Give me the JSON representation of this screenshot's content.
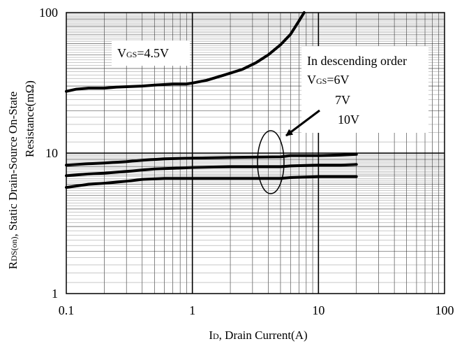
{
  "chart_data": {
    "type": "line",
    "x_scale": "log",
    "y_scale": "log",
    "xlim": [
      0.1,
      100
    ],
    "ylim": [
      1,
      100
    ],
    "x_ticks": [
      "0.1",
      "1",
      "10",
      "100"
    ],
    "y_ticks": [
      "1",
      "10",
      "100"
    ],
    "xlabel": {
      "main": "I",
      "sub": "D",
      "rest": ", Drain Current(A)"
    },
    "ylabel_line1": {
      "main": "R",
      "sub": "DS(on)",
      "rest": ", Static Drain-Source On-State"
    },
    "ylabel_line2": "Resistance(mΩ)",
    "grid": true,
    "series": [
      {
        "label": {
          "main": "V",
          "sub": "GS",
          "rest": "=4.5V"
        },
        "points": [
          [
            0.1,
            27.5
          ],
          [
            0.12,
            28.5
          ],
          [
            0.15,
            29
          ],
          [
            0.2,
            29
          ],
          [
            0.25,
            29.5
          ],
          [
            0.4,
            30
          ],
          [
            0.5,
            30.5
          ],
          [
            0.7,
            31
          ],
          [
            0.9,
            31
          ],
          [
            1.0,
            31.5
          ],
          [
            1.3,
            33
          ],
          [
            1.8,
            36
          ],
          [
            2.5,
            39.5
          ],
          [
            3.2,
            44
          ],
          [
            4.0,
            50
          ],
          [
            5.0,
            59
          ],
          [
            6.0,
            70
          ],
          [
            7.0,
            87
          ],
          [
            7.7,
            100
          ]
        ]
      },
      {
        "label": {
          "main": "V",
          "sub": "GS",
          "rest": "=6V"
        },
        "points": [
          [
            0.1,
            8.2
          ],
          [
            0.15,
            8.4
          ],
          [
            0.2,
            8.5
          ],
          [
            0.3,
            8.7
          ],
          [
            0.4,
            8.9
          ],
          [
            0.6,
            9.1
          ],
          [
            1.0,
            9.2
          ],
          [
            2.0,
            9.3
          ],
          [
            5.0,
            9.4
          ],
          [
            6.0,
            9.6
          ],
          [
            10.0,
            9.6
          ],
          [
            15.0,
            9.7
          ],
          [
            20.0,
            9.8
          ]
        ]
      },
      {
        "label": {
          "main": "",
          "sub": "",
          "rest": "7V"
        },
        "points": [
          [
            0.1,
            6.9
          ],
          [
            0.15,
            7.1
          ],
          [
            0.2,
            7.2
          ],
          [
            0.3,
            7.4
          ],
          [
            0.5,
            7.7
          ],
          [
            0.7,
            7.8
          ],
          [
            1.0,
            7.9
          ],
          [
            2.0,
            8.0
          ],
          [
            5.0,
            8.0
          ],
          [
            6.0,
            8.1
          ],
          [
            10.0,
            8.2
          ],
          [
            15.0,
            8.2
          ],
          [
            20.0,
            8.3
          ]
        ]
      },
      {
        "label": {
          "main": "",
          "sub": "",
          "rest": "10V"
        },
        "points": [
          [
            0.1,
            5.7
          ],
          [
            0.15,
            6.0
          ],
          [
            0.2,
            6.1
          ],
          [
            0.3,
            6.3
          ],
          [
            0.4,
            6.5
          ],
          [
            0.6,
            6.6
          ],
          [
            1.0,
            6.6
          ],
          [
            2.0,
            6.6
          ],
          [
            5.0,
            6.6
          ],
          [
            6.0,
            6.7
          ],
          [
            10.0,
            6.8
          ],
          [
            15.0,
            6.8
          ],
          [
            20.0,
            6.8
          ]
        ]
      }
    ],
    "annotations": {
      "order_title": "In descending order"
    }
  }
}
